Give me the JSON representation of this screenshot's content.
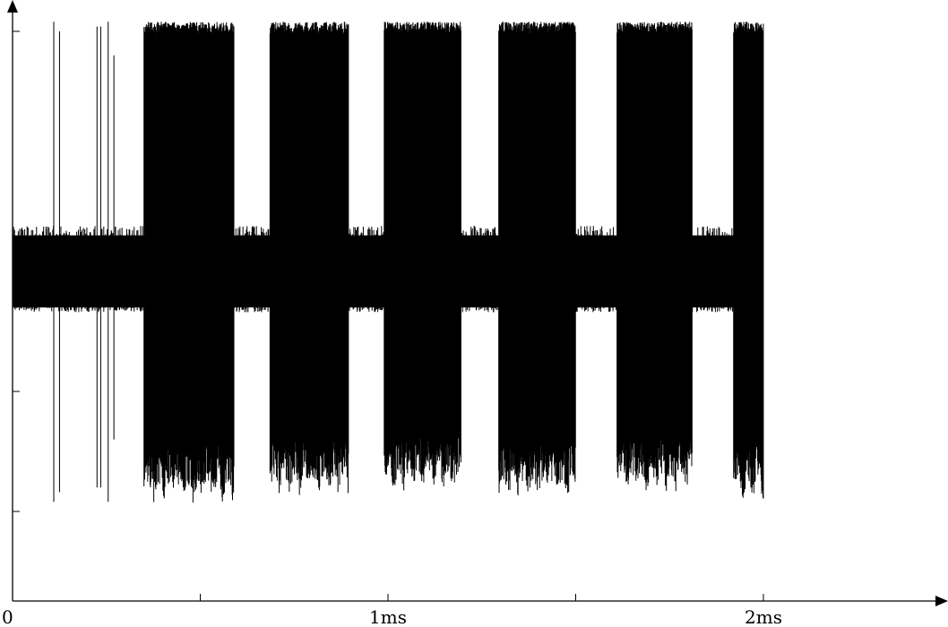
{
  "chart_data": {
    "type": "line",
    "title": "",
    "xlabel": "",
    "ylabel": "",
    "x_unit": "ms",
    "xlim": [
      0,
      2.5
    ],
    "ylim": [
      -1.3,
      1.3
    ],
    "grid": false,
    "legend": "none",
    "x_ticks": [
      {
        "value": 0,
        "label": "0"
      },
      {
        "value": 0.5,
        "label": ""
      },
      {
        "value": 1,
        "label": "1ms"
      },
      {
        "value": 1.5,
        "label": ""
      },
      {
        "value": 2,
        "label": "2ms"
      }
    ],
    "y_ticks": [
      1.0,
      -0.5,
      -1.0
    ],
    "signal": {
      "name": "",
      "color": "#000000",
      "duration_ms": 2.0,
      "baseline_band": [
        -0.15,
        0.15
      ],
      "baseline_noise_peak": [
        -0.17,
        0.19
      ],
      "bursts": [
        {
          "start": 0.35,
          "end": 0.59,
          "max": 1.04,
          "min": -0.97
        },
        {
          "start": 0.685,
          "end": 0.895,
          "max": 1.04,
          "min": -0.94
        },
        {
          "start": 0.99,
          "end": 1.195,
          "max": 1.04,
          "min": -0.92
        },
        {
          "start": 1.295,
          "end": 1.5,
          "max": 1.04,
          "min": -0.95
        },
        {
          "start": 1.61,
          "end": 1.81,
          "max": 1.04,
          "min": -0.93
        },
        {
          "start": 1.92,
          "end": 2.0,
          "max": 1.04,
          "min": -0.96
        }
      ],
      "spikes": [
        {
          "t": 0.11,
          "max": 1.04,
          "min": -0.96
        },
        {
          "t": 0.125,
          "max": 1.0,
          "min": -0.92
        },
        {
          "t": 0.225,
          "max": 1.02,
          "min": -0.9
        },
        {
          "t": 0.235,
          "max": 1.02,
          "min": -0.9
        },
        {
          "t": 0.255,
          "max": 1.04,
          "min": -0.96
        },
        {
          "t": 0.27,
          "max": 0.9,
          "min": -0.7
        }
      ]
    }
  }
}
